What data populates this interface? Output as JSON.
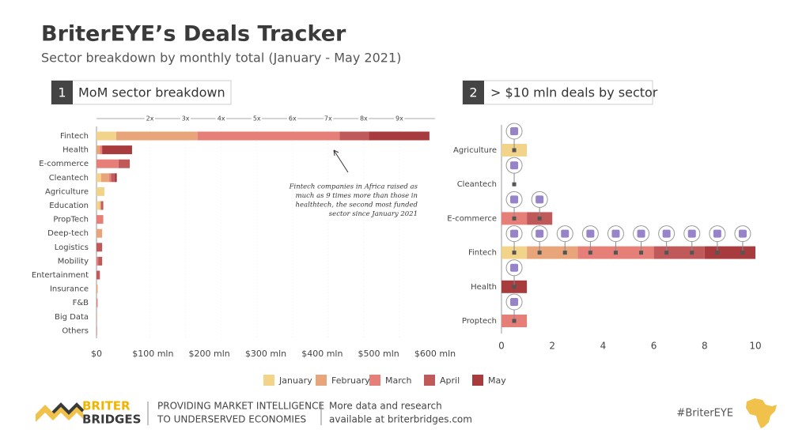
{
  "header": {
    "title": "BriterEYE’s Deals Tracker",
    "subtitle": "Sector breakdown by monthly total (January  - May 2021)"
  },
  "chart_data": [
    {
      "type": "stacked-bar-horizontal",
      "number": "1",
      "title": "MoM sector breakdown",
      "categories": [
        "Fintech",
        "Health",
        "E-commerce",
        "Cleantech",
        "Agriculture",
        "Education",
        "PropTech",
        "Deep-tech",
        "Logistics",
        "Mobility",
        "Entertainment",
        "Insurance",
        "F&B",
        "Big Data",
        "Others"
      ],
      "series": [
        {
          "name": "January",
          "color": "#f2d38a",
          "values": [
            35,
            0,
            0,
            8,
            14,
            6,
            0,
            0,
            0,
            0,
            0,
            0,
            0,
            0,
            0
          ]
        },
        {
          "name": "February",
          "color": "#e9a57a",
          "values": [
            144,
            6,
            0,
            14,
            0,
            2,
            0,
            10,
            0,
            0,
            0,
            2,
            0,
            1,
            0
          ]
        },
        {
          "name": "March",
          "color": "#e57f78",
          "values": [
            252,
            4,
            39,
            4,
            0,
            0,
            12,
            0,
            0,
            3,
            0,
            0,
            2,
            0,
            1
          ]
        },
        {
          "name": "April",
          "color": "#c0595a",
          "values": [
            52,
            0,
            20,
            6,
            0,
            4,
            0,
            0,
            10,
            7,
            6,
            0,
            0,
            0,
            0
          ]
        },
        {
          "name": "May",
          "color": "#a83b3d",
          "values": [
            107,
            53,
            0,
            4,
            0,
            0,
            0,
            0,
            0,
            0,
            0,
            0,
            0,
            0,
            0
          ]
        }
      ],
      "xlim": [
        0,
        600
      ],
      "xticks": [
        {
          "value": 0,
          "label": "$0"
        },
        {
          "value": 100,
          "label": "$100 mln"
        },
        {
          "value": 200,
          "label": "$200 mln"
        },
        {
          "value": 300,
          "label": "$300 mln"
        },
        {
          "value": 400,
          "label": "$400 mln"
        },
        {
          "value": 500,
          "label": "$500 mln"
        },
        {
          "value": 600,
          "label": "$600 mln"
        }
      ],
      "x2lim": [
        0.5,
        10
      ],
      "x2ticks": [
        {
          "value": 2,
          "label": "2x"
        },
        {
          "value": 3,
          "label": "3x"
        },
        {
          "value": 4,
          "label": "4x"
        },
        {
          "value": 5,
          "label": "5x"
        },
        {
          "value": 6,
          "label": "6x"
        },
        {
          "value": 7,
          "label": "7x"
        },
        {
          "value": 8,
          "label": "8x"
        },
        {
          "value": 9,
          "label": "9x"
        }
      ],
      "annotation": [
        "Fintech companies in Africa raised as",
        "much as 9 times more than those in",
        "healthtech, the second most funded",
        "sector since January 2021"
      ]
    },
    {
      "type": "stacked-bar-horizontal",
      "number": "2",
      "title": "> $10 mln deals by sector",
      "categories": [
        "Agriculture",
        "Cleantech",
        "E-commerce",
        "Fintech",
        "Health",
        "Proptech"
      ],
      "series": [
        {
          "color": "#f2d38a",
          "values": [
            1,
            0,
            0,
            1,
            0,
            0
          ]
        },
        {
          "color": "#e9a57a",
          "values": [
            0,
            0,
            0,
            2,
            0,
            0
          ]
        },
        {
          "color": "#e57f78",
          "values": [
            0,
            0,
            1,
            3,
            0,
            1
          ]
        },
        {
          "color": "#c0595a",
          "values": [
            0,
            0,
            1,
            2,
            0,
            0
          ]
        },
        {
          "color": "#a83b3d",
          "values": [
            0,
            0,
            0,
            2,
            1,
            0
          ]
        }
      ],
      "xlim": [
        0,
        10
      ],
      "xticks": [
        0,
        2,
        4,
        6,
        8,
        10
      ]
    }
  ],
  "footer": {
    "brand": [
      "BRITER",
      "BRIDGES"
    ],
    "tagline": [
      "PROVIDING MARKET INTELLIGENCE",
      "TO UNDERSERVED ECONOMIES"
    ],
    "more": [
      "More data and research",
      "available at briterbridges.com"
    ],
    "hashtag": "#BriterEYE"
  }
}
